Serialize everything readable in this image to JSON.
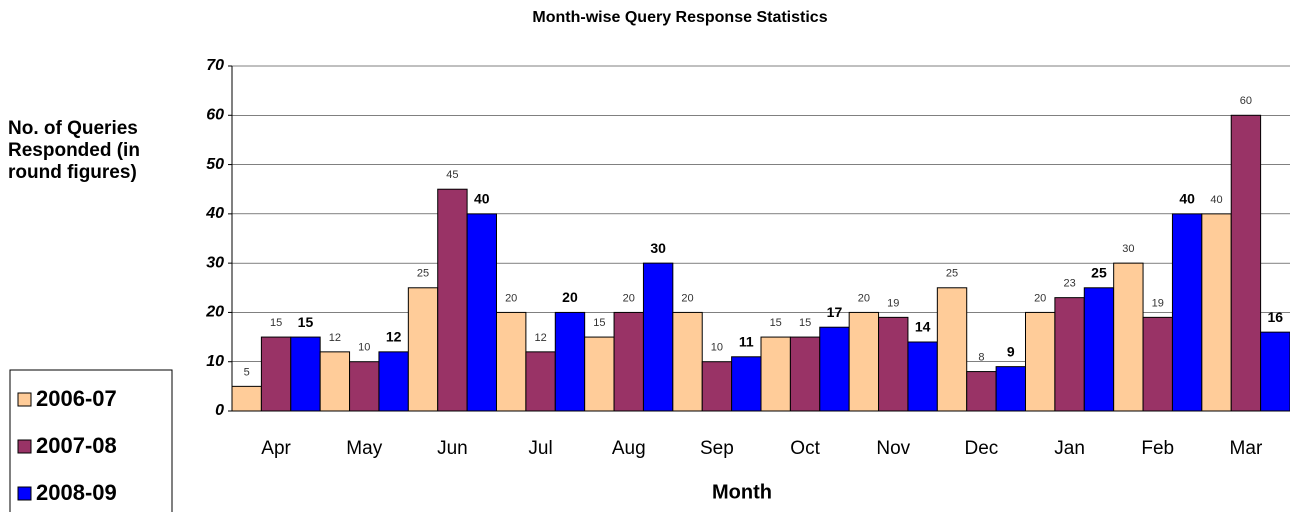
{
  "chart_data": {
    "type": "bar",
    "title": "Month-wise Query Response Statistics",
    "x_label": "Month",
    "y_label": "No. of Queries Responded (in round figures)",
    "categories": [
      "Apr",
      "May",
      "Jun",
      "Jul",
      "Aug",
      "Sep",
      "Oct",
      "Nov",
      "Dec",
      "Jan",
      "Feb",
      "Mar"
    ],
    "series": [
      {
        "name": "2006-07",
        "color": "#ffcc99",
        "values": [
          5,
          12,
          25,
          20,
          15,
          20,
          15,
          20,
          25,
          20,
          30,
          40
        ]
      },
      {
        "name": "2007-08",
        "color": "#993366",
        "values": [
          15,
          10,
          45,
          12,
          20,
          10,
          15,
          19,
          8,
          23,
          19,
          60
        ]
      },
      {
        "name": "2008-09",
        "color": "#0000ff",
        "values": [
          15,
          12,
          40,
          20,
          30,
          11,
          17,
          14,
          9,
          25,
          40,
          16
        ]
      }
    ],
    "ylim": [
      0,
      70
    ],
    "yticks": [
      0,
      10,
      20,
      30,
      40,
      50,
      60,
      70
    ],
    "grid": true,
    "legend": "bottom-left"
  }
}
